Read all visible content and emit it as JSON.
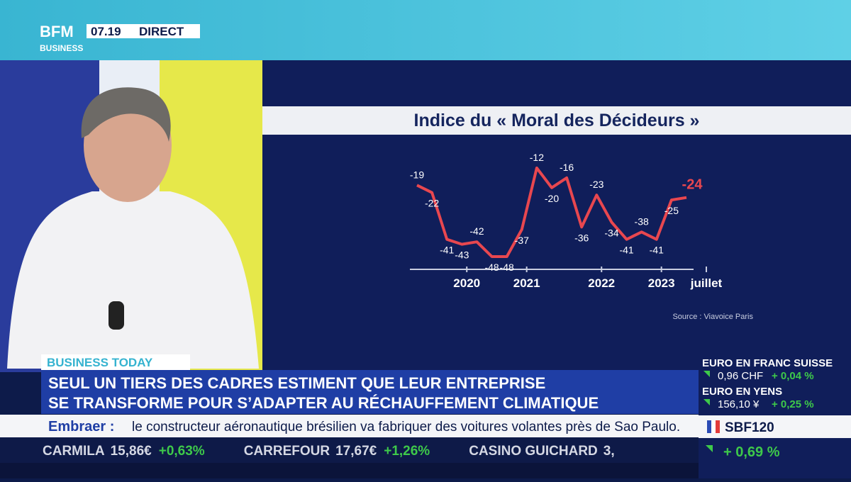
{
  "header": {
    "logo_top": "BFM",
    "logo_bottom": "BUSINESS",
    "time": "07.19",
    "status": "DIRECT"
  },
  "chart_data": {
    "type": "line",
    "title": "Indice du « Moral des Décideurs »",
    "source": "Source : Viavoice Paris",
    "categories": [
      null,
      null,
      "2020",
      null,
      null,
      null,
      "2021",
      null,
      null,
      null,
      null,
      "2022",
      null,
      null,
      null,
      "2023",
      null,
      null,
      "juillet"
    ],
    "series": [
      {
        "color": "#e8474f",
        "values": [
          -19,
          -22,
          -41,
          -43,
          -42,
          -48,
          -48,
          -37,
          -12,
          -20,
          -16,
          -36,
          -23,
          -34,
          -41,
          -38,
          -41,
          -25,
          -24
        ]
      }
    ]
  },
  "banner": {
    "tag": "BUSINESS TODAY",
    "headline": [
      "SEUL UN TIERS DES CADRES ESTIMENT QUE LEUR ENTREPRISE",
      "SE TRANSFORME POUR S’ADAPTER AU RÉCHAUFFEMENT CLIMATIQUE"
    ]
  },
  "news_ticker": {
    "topic": "Embraer :",
    "text": "le constructeur aéronautique brésilien va fabriquer des voitures volantes près de Sao Paulo."
  },
  "stock_ticker": [
    {
      "name": "CARMILA",
      "price": "15,86€",
      "change": "+0,63%"
    },
    {
      "name": "CARREFOUR",
      "price": "17,67€",
      "change": "+1,26%"
    },
    {
      "name": "CASINO GUICHARD",
      "price": "3,",
      "change": ""
    }
  ],
  "markets": [
    {
      "name": "EURO EN FRANC SUISSE",
      "price": "0,96 CHF",
      "change": "+ 0,04 %"
    },
    {
      "name": "EURO EN YENS",
      "price": "156,10 ¥",
      "change": "+ 0,25 %"
    }
  ],
  "index": {
    "name": "SBF120",
    "change": "+ 0,69 %"
  }
}
